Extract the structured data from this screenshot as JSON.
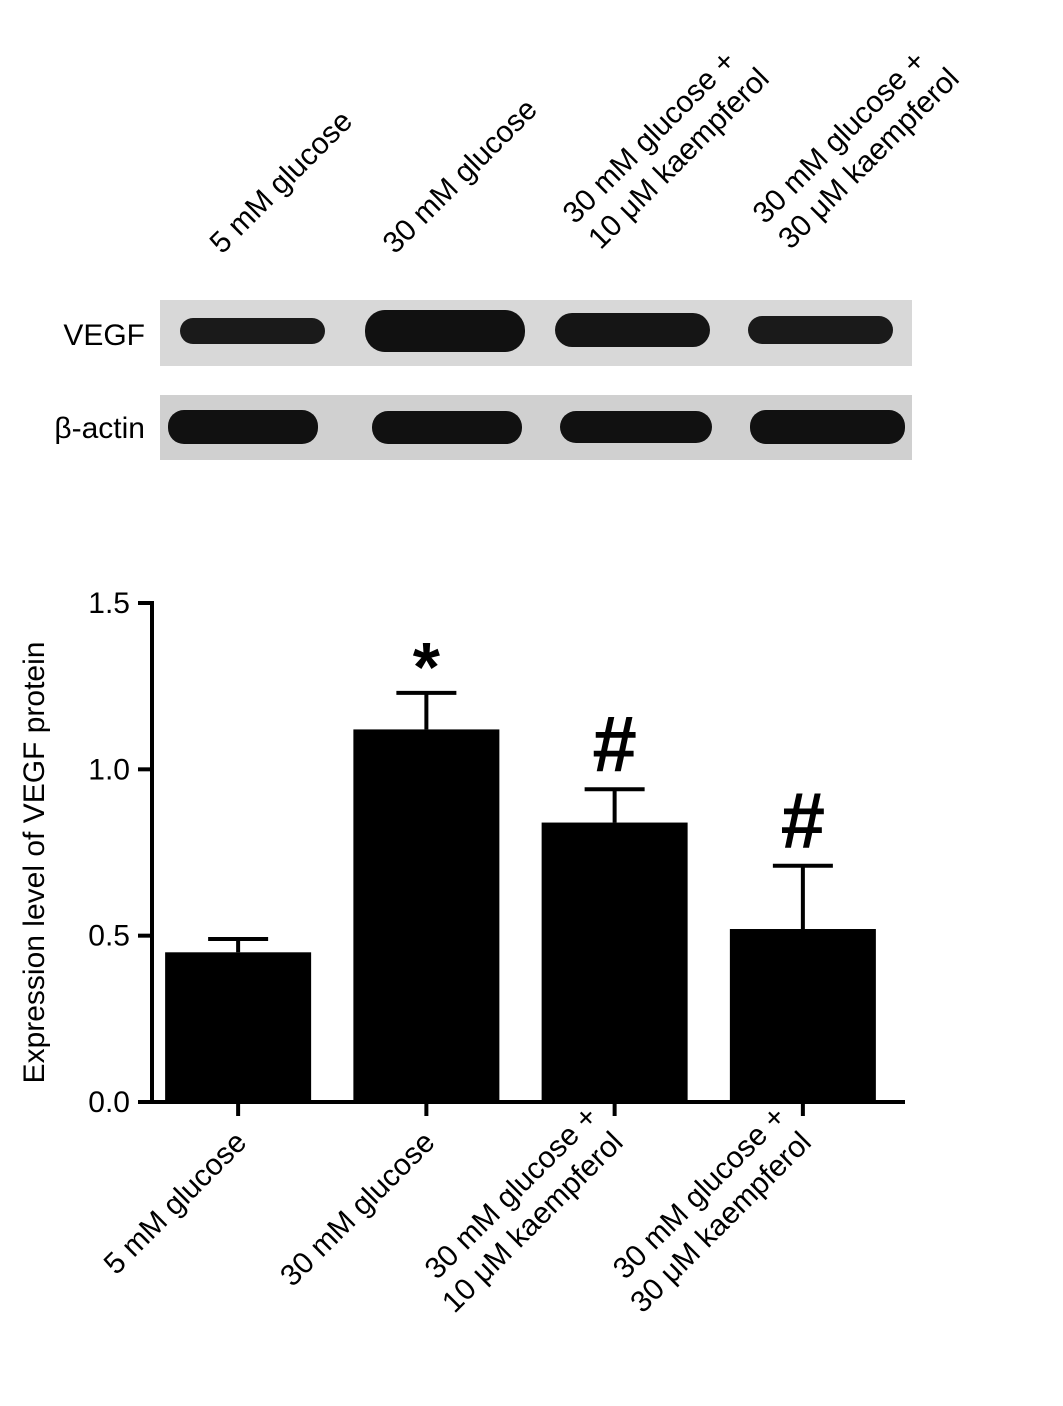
{
  "blot": {
    "lanes": [
      [
        "5 mM  glucose"
      ],
      [
        "30 mM  glucose"
      ],
      [
        "30 mM glucose +",
        "10 μM  kaempferol"
      ],
      [
        "30 mM glucose +",
        "30 μM  kaempferol"
      ]
    ],
    "rows": [
      "VEGF",
      "β-actin"
    ]
  },
  "chart_data": {
    "type": "bar",
    "y_label": "Expression level of VEGF protein",
    "categories": [
      [
        "5 mM  glucose"
      ],
      [
        "30 mM  glucose"
      ],
      [
        "30 mM glucose +",
        "10 μM  kaempferol"
      ],
      [
        "30 mM glucose +",
        "30 μM  kaempferol"
      ]
    ],
    "values": [
      0.45,
      1.12,
      0.84,
      0.52
    ],
    "errors": [
      0.04,
      0.11,
      0.1,
      0.19
    ],
    "annotations": [
      null,
      "*",
      "#",
      "#"
    ],
    "color": "#000000",
    "ylim": [
      0,
      1.5
    ],
    "yticks": [
      {
        "value": 0,
        "label": "0.0"
      },
      0.5,
      {
        "value": 1,
        "label": "1.0"
      },
      1.5
    ]
  }
}
